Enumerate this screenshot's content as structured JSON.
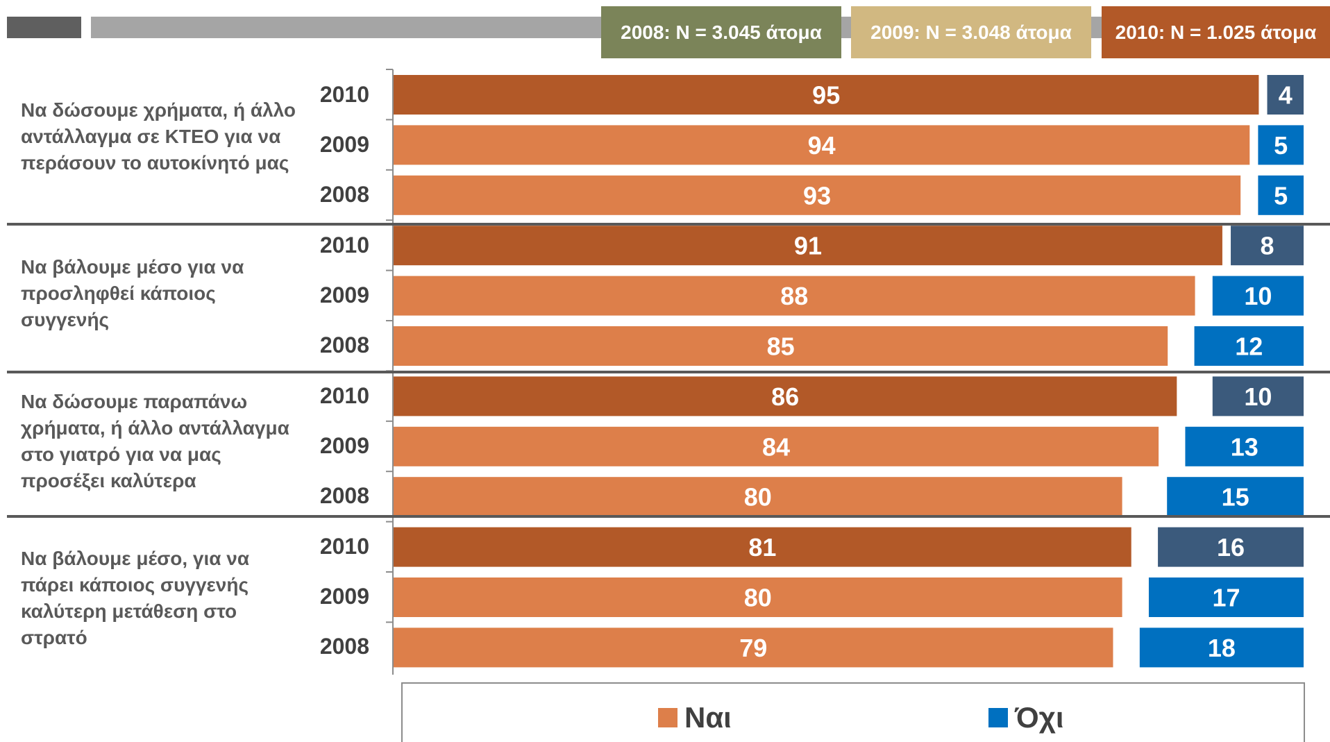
{
  "header": {
    "n_2008": "2008: N = 3.045 άτομα",
    "n_2009": "2009: N = 3.048 άτομα",
    "n_2010": "2010: N = 1.025 άτομα"
  },
  "colors": {
    "yes_2010": "#b25928",
    "yes_other": "#dd7f4a",
    "no_2010": "#3b5a7c",
    "no_other": "#0070c0",
    "box_2008": "#7b8459",
    "box_2009": "#d1b881",
    "box_2010": "#b25928"
  },
  "legend": {
    "yes": "Ναι",
    "no": "Όχι"
  },
  "chart_data": {
    "type": "bar",
    "orientation": "horizontal",
    "xlim": [
      0,
      100
    ],
    "groups": [
      {
        "label": "Να δώσουμε χρήματα, ή άλλο αντάλλαγμα σε ΚΤΕΟ για να περάσουν το αυτοκίνητό μας",
        "rows": [
          {
            "year": "2010",
            "yes": 95,
            "no": 4
          },
          {
            "year": "2009",
            "yes": 94,
            "no": 5
          },
          {
            "year": "2008",
            "yes": 93,
            "no": 5
          }
        ]
      },
      {
        "label": "Να βάλουμε μέσο για να προσληφθεί κάποιος συγγενής",
        "rows": [
          {
            "year": "2010",
            "yes": 91,
            "no": 8
          },
          {
            "year": "2009",
            "yes": 88,
            "no": 10
          },
          {
            "year": "2008",
            "yes": 85,
            "no": 12
          }
        ]
      },
      {
        "label": "Να δώσουμε παραπάνω χρήματα, ή άλλο αντάλλαγμα στο γιατρό για να μας προσέξει καλύτερα",
        "rows": [
          {
            "year": "2010",
            "yes": 86,
            "no": 10
          },
          {
            "year": "2009",
            "yes": 84,
            "no": 13
          },
          {
            "year": "2008",
            "yes": 80,
            "no": 15
          }
        ]
      },
      {
        "label": "Να βάλουμε μέσο, για να πάρει κάποιος συγγενής καλύτερη μετάθεση στο στρατό",
        "rows": [
          {
            "year": "2010",
            "yes": 81,
            "no": 16
          },
          {
            "year": "2009",
            "yes": 80,
            "no": 17
          },
          {
            "year": "2008",
            "yes": 79,
            "no": 18
          }
        ]
      }
    ]
  }
}
